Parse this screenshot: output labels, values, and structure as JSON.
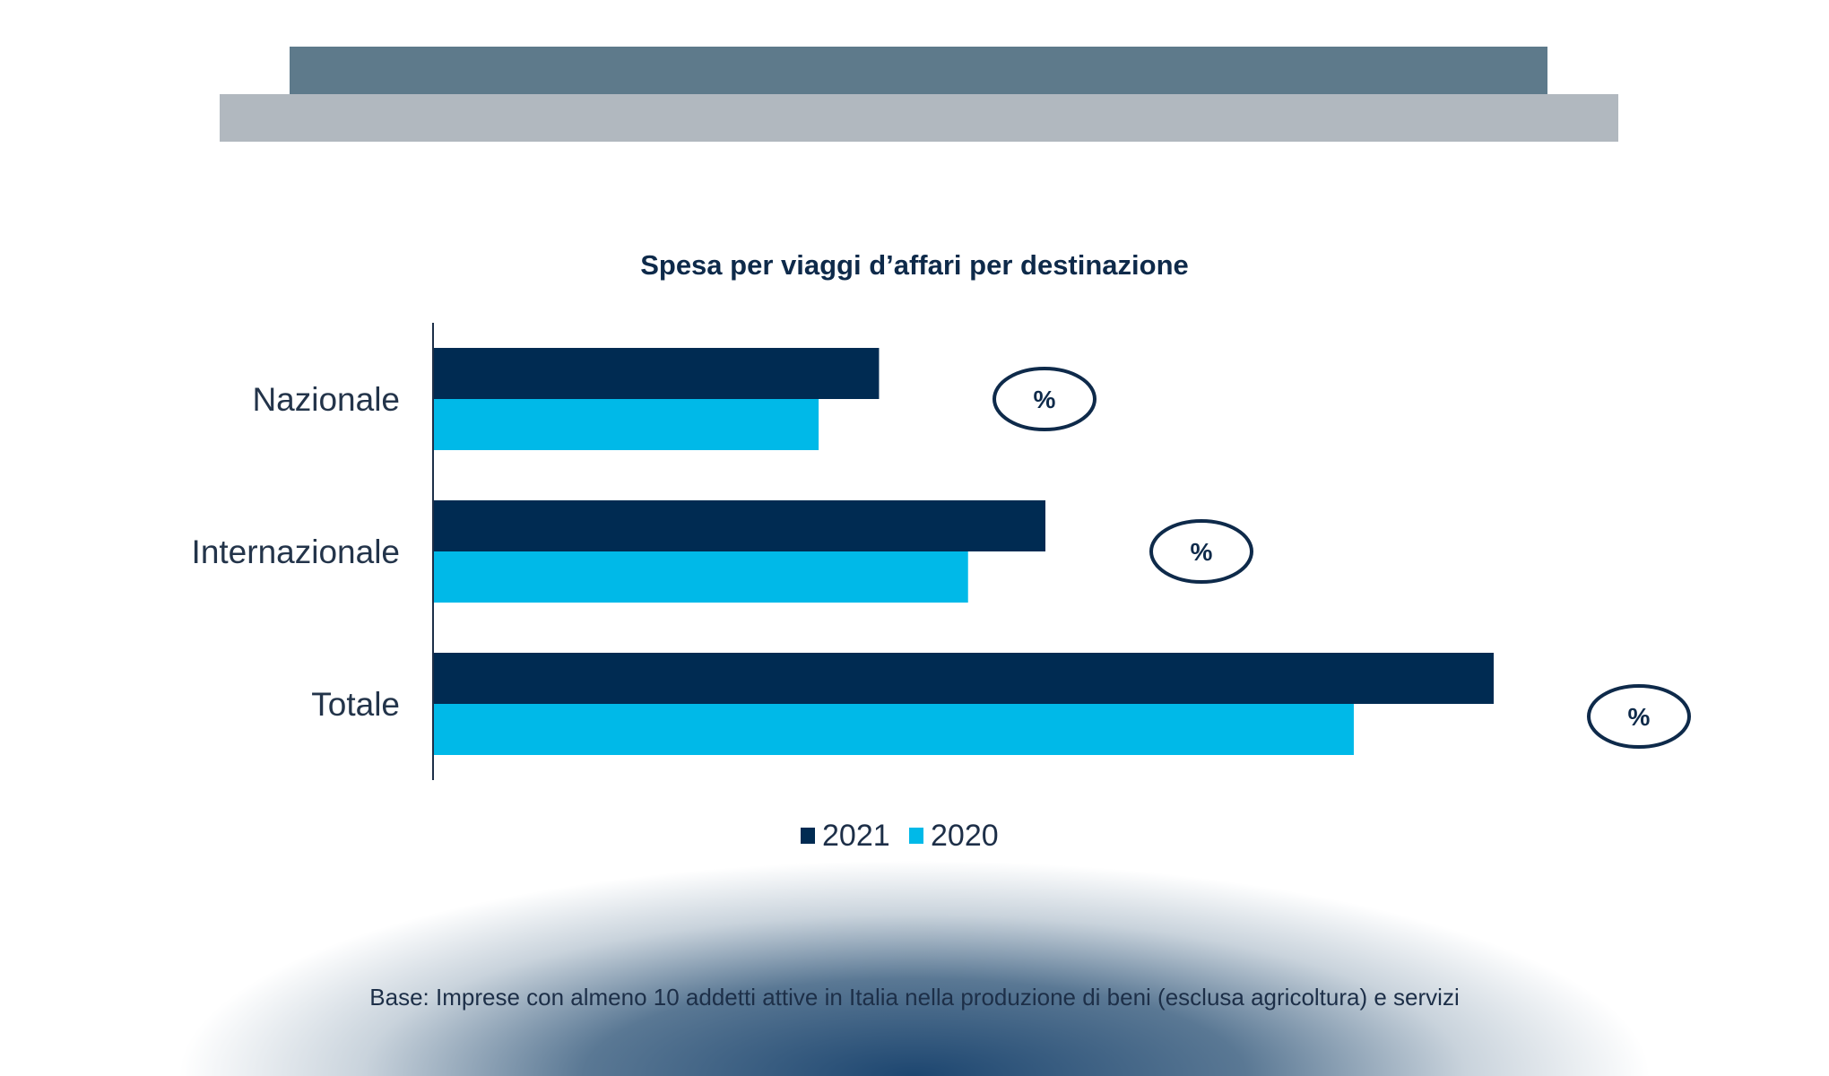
{
  "chart_data": {
    "type": "bar",
    "orientation": "horizontal",
    "title": "Spesa per viaggi d’affari per destinazione",
    "categories": [
      "Nazionale",
      "Internazionale",
      "Totale"
    ],
    "series": [
      {
        "name": "2021",
        "color": "#002b52",
        "values": [
          42,
          57.7,
          100
        ]
      },
      {
        "name": "2020",
        "color": "#00b9e8",
        "values": [
          36.3,
          50.4,
          86.8
        ]
      }
    ],
    "value_note_labels": [
      "%",
      "%",
      "%"
    ],
    "xlim": [
      0,
      100
    ],
    "grid": false,
    "legend_position": "bottom"
  },
  "footnote": "Base: Imprese con almeno 10 addetti attive in Italia nella produzione di beni (esclusa agricoltura) e servizi",
  "colors": {
    "band_dark": "#5e7a8b",
    "band_light": "#b1b8bf",
    "text": "#0e2a4a"
  }
}
